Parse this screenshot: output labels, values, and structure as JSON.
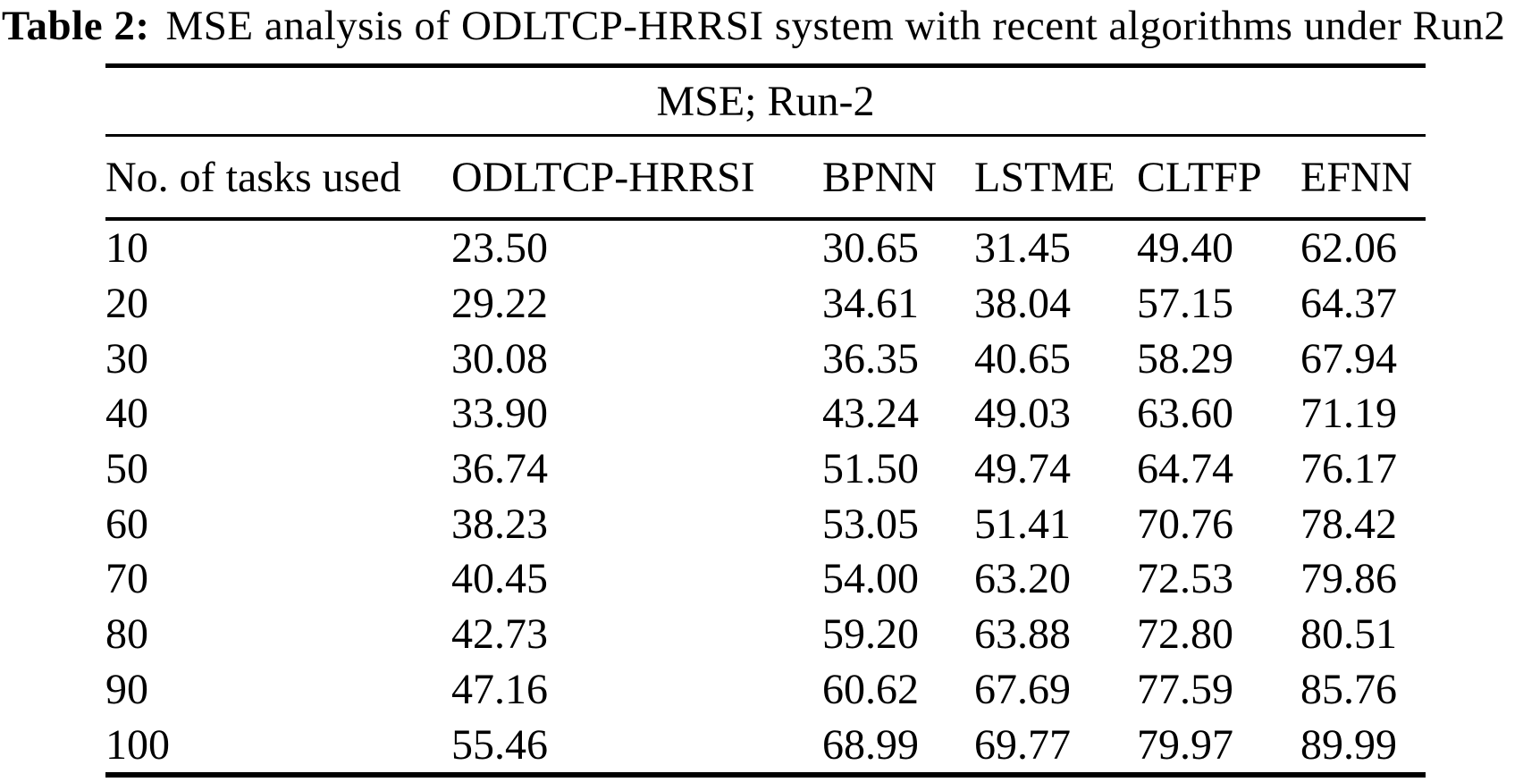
{
  "caption": {
    "label": "Table 2:",
    "text": "MSE analysis of ODLTCP-HRRSI system with recent algorithms under Run2"
  },
  "table": {
    "group_header": "MSE; Run-2",
    "columns": [
      "No. of tasks used",
      "ODLTCP-HRRSI",
      "BPNN",
      "LSTME",
      "CLTFP",
      "EFNN"
    ],
    "rows": [
      [
        "10",
        "23.50",
        "30.65",
        "31.45",
        "49.40",
        "62.06"
      ],
      [
        "20",
        "29.22",
        "34.61",
        "38.04",
        "57.15",
        "64.37"
      ],
      [
        "30",
        "30.08",
        "36.35",
        "40.65",
        "58.29",
        "67.94"
      ],
      [
        "40",
        "33.90",
        "43.24",
        "49.03",
        "63.60",
        "71.19"
      ],
      [
        "50",
        "36.74",
        "51.50",
        "49.74",
        "64.74",
        "76.17"
      ],
      [
        "60",
        "38.23",
        "53.05",
        "51.41",
        "70.76",
        "78.42"
      ],
      [
        "70",
        "40.45",
        "54.00",
        "63.20",
        "72.53",
        "79.86"
      ],
      [
        "80",
        "42.73",
        "59.20",
        "63.88",
        "72.80",
        "80.51"
      ],
      [
        "90",
        "47.16",
        "60.62",
        "67.69",
        "77.59",
        "85.76"
      ],
      [
        "100",
        "55.46",
        "68.99",
        "69.77",
        "79.97",
        "89.99"
      ]
    ]
  },
  "colors": {
    "text": "#000000",
    "background": "#ffffff",
    "rule": "#000000"
  },
  "chart_data": {
    "type": "table",
    "title": "Table 2: MSE analysis of ODLTCP-HRRSI system with recent algorithms under Run2",
    "group_header": "MSE; Run-2",
    "xlabel": "No. of tasks used",
    "ylabel": "MSE",
    "categories": [
      10,
      20,
      30,
      40,
      50,
      60,
      70,
      80,
      90,
      100
    ],
    "series": [
      {
        "name": "ODLTCP-HRRSI",
        "values": [
          23.5,
          29.22,
          30.08,
          33.9,
          36.74,
          38.23,
          40.45,
          42.73,
          47.16,
          55.46
        ]
      },
      {
        "name": "BPNN",
        "values": [
          30.65,
          34.61,
          36.35,
          43.24,
          51.5,
          53.05,
          54.0,
          59.2,
          60.62,
          68.99
        ]
      },
      {
        "name": "LSTME",
        "values": [
          31.45,
          38.04,
          40.65,
          49.03,
          49.74,
          51.41,
          63.2,
          63.88,
          67.69,
          69.77
        ]
      },
      {
        "name": "CLTFP",
        "values": [
          49.4,
          57.15,
          58.29,
          63.6,
          64.74,
          70.76,
          72.53,
          72.8,
          77.59,
          79.97
        ]
      },
      {
        "name": "EFNN",
        "values": [
          62.06,
          64.37,
          67.94,
          71.19,
          76.17,
          78.42,
          79.86,
          80.51,
          85.76,
          89.99
        ]
      }
    ]
  }
}
